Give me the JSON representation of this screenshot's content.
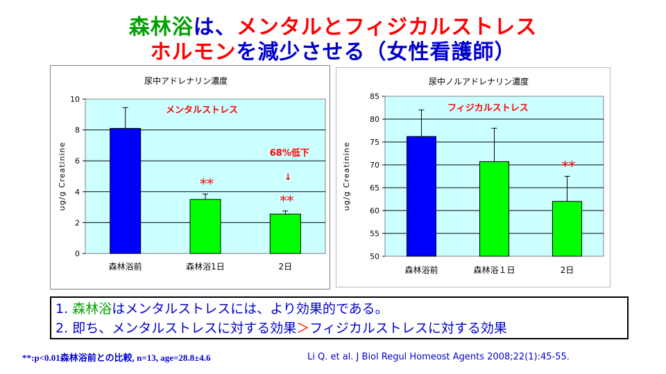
{
  "title": {
    "line1_part1": "森林浴",
    "line1_part2": "は、",
    "line1_part3": "メンタルとフィジカルストレス",
    "line2_part1": "ホルモン",
    "line2_part2": "を減少させる（女性看護師）"
  },
  "colors": {
    "blue": "#0000cc",
    "green": "#00a000",
    "red": "#ff0000",
    "bar_blue": "#0000ff",
    "bar_green": "#00ff00",
    "plot_bg": "#ccffff"
  },
  "chart_data": [
    {
      "type": "bar",
      "title": "尿中アドレナリン濃度",
      "ylabel": "ug/g Creatinine",
      "xlabel": "",
      "categories": [
        "森林浴前",
        "森林浴1日",
        "2日"
      ],
      "values": [
        8.1,
        3.5,
        2.55
      ],
      "errors": [
        1.35,
        0.35,
        0.2
      ],
      "ylim": [
        0,
        10
      ],
      "yticks": [
        0,
        2,
        4,
        6,
        8,
        10
      ],
      "grid": true,
      "legend": "none",
      "bar_colors": [
        "#0000ff",
        "#00ff00",
        "#00ff00"
      ],
      "annotations": {
        "label": "メンタルストレス",
        "reduction": "68%低下",
        "arrow": "↓",
        "significance": [
          "",
          "**",
          "**"
        ]
      }
    },
    {
      "type": "bar",
      "title": "尿中ノルアドレナリン濃度",
      "ylabel": "ug/g Creatinine",
      "xlabel": "",
      "categories": [
        "森林浴前",
        "森林浴１日",
        "2日"
      ],
      "values": [
        76.2,
        70.7,
        62.0
      ],
      "errors": [
        5.8,
        7.3,
        5.5
      ],
      "ylim": [
        50,
        85
      ],
      "yticks": [
        50,
        55,
        60,
        65,
        70,
        75,
        80,
        85
      ],
      "grid": true,
      "legend": "none",
      "bar_colors": [
        "#0000ff",
        "#00ff00",
        "#00ff00"
      ],
      "annotations": {
        "label": "フィジカルストレス",
        "significance": [
          "",
          "",
          "**"
        ]
      }
    }
  ],
  "summary": {
    "line1_num": "1.",
    "line1_green": "森林浴",
    "line1_rest": "はメンタルストレスには、より効果的である。",
    "line2_num": "2.",
    "line2_part1": "即ち、メンタルストレスに対する効果",
    "line2_gt": "＞",
    "line2_part2": "フィジカルストレスに対する効果"
  },
  "footnote": "**:p<0.01森林浴前との比較, n=13, age=28.8±4.6",
  "citation": "Li Q. et al. J Biol Regul Homeost Agents 2008;22(1):45-55."
}
